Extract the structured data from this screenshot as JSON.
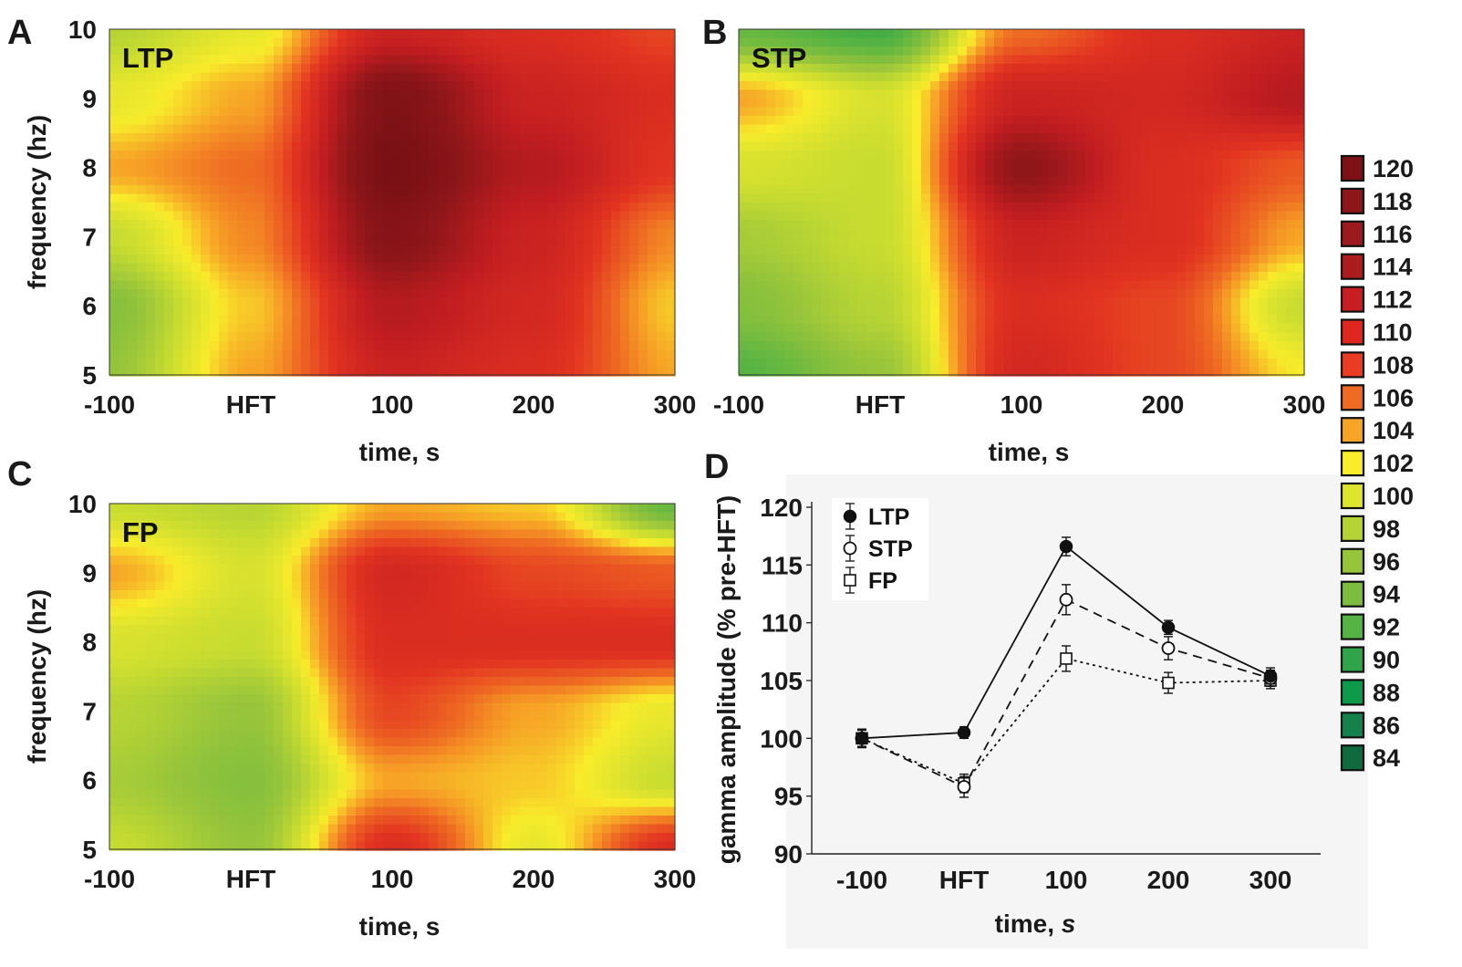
{
  "chart_data": [
    {
      "panel": "A",
      "type": "heatmap",
      "label": "LTP",
      "xlabel": "time, s",
      "ylabel": "frequency (hz)",
      "x_ticks": [
        "-100",
        "HFT",
        "100",
        "200",
        "300"
      ],
      "y_ticks": [
        "5",
        "6",
        "7",
        "8",
        "9",
        "10"
      ],
      "xlim": [
        -100,
        300
      ],
      "ylim": [
        5,
        10
      ],
      "x": [
        -100,
        0,
        100,
        200,
        300
      ],
      "y": [
        5,
        6,
        7,
        8,
        9,
        10
      ],
      "values": [
        [
          96,
          104,
          112,
          110,
          104
        ],
        [
          95,
          103,
          114,
          111,
          103
        ],
        [
          99,
          105,
          118,
          112,
          105
        ],
        [
          104,
          106,
          120,
          114,
          109
        ],
        [
          101,
          104,
          119,
          112,
          110
        ],
        [
          98,
          101,
          112,
          110,
          108
        ]
      ]
    },
    {
      "panel": "B",
      "type": "heatmap",
      "label": "STP",
      "xlabel": "time, s",
      "ylabel": "",
      "x_ticks": [
        "-100",
        "HFT",
        "100",
        "200",
        "300"
      ],
      "y_ticks": [],
      "xlim": [
        -100,
        300
      ],
      "ylim": [
        5,
        10
      ],
      "x": [
        -100,
        0,
        100,
        200,
        300
      ],
      "y": [
        5,
        6,
        7,
        8,
        9,
        10
      ],
      "values": [
        [
          92,
          96,
          111,
          108,
          102
        ],
        [
          95,
          98,
          110,
          108,
          99
        ],
        [
          97,
          99,
          112,
          110,
          104
        ],
        [
          100,
          99,
          117,
          110,
          107
        ],
        [
          104,
          100,
          112,
          111,
          114
        ],
        [
          93,
          91,
          106,
          110,
          112
        ]
      ]
    },
    {
      "panel": "C",
      "type": "heatmap",
      "label": "FP",
      "xlabel": "time, s",
      "ylabel": "frequency (hz)",
      "x_ticks": [
        "-100",
        "HFT",
        "100",
        "200",
        "300"
      ],
      "y_ticks": [
        "5",
        "6",
        "7",
        "8",
        "9",
        "10"
      ],
      "xlim": [
        -100,
        300
      ],
      "ylim": [
        5,
        10
      ],
      "x": [
        -100,
        0,
        100,
        200,
        300
      ],
      "y": [
        5,
        6,
        7,
        8,
        9,
        10
      ],
      "values": [
        [
          99,
          96,
          110,
          101,
          110
        ],
        [
          97,
          95,
          104,
          103,
          99
        ],
        [
          98,
          96,
          108,
          104,
          101
        ],
        [
          100,
          99,
          110,
          110,
          110
        ],
        [
          104,
          100,
          111,
          108,
          107
        ],
        [
          99,
          98,
          104,
          103,
          93
        ]
      ]
    },
    {
      "panel": "D",
      "type": "line",
      "xlabel": "time, ",
      "xlabel_italic": "s",
      "ylabel": "gamma amplitude (% pre-HFT)",
      "categories": [
        "-100",
        "HFT",
        "100",
        "200",
        "300"
      ],
      "y_ticks": [
        "90",
        "95",
        "100",
        "105",
        "110",
        "115",
        "120"
      ],
      "ylim": [
        90,
        120
      ],
      "series": [
        {
          "name": "LTP",
          "marker": "filled-circle",
          "line": "solid",
          "values": [
            100,
            100.5,
            116.6,
            109.6,
            105.4
          ],
          "errors": [
            0.8,
            0.5,
            0.8,
            0.6,
            0.7
          ]
        },
        {
          "name": "STP",
          "marker": "open-diamond",
          "line": "dashed",
          "values": [
            100,
            95.8,
            112,
            107.8,
            105.2
          ],
          "errors": [
            0.8,
            0.9,
            1.3,
            1.0,
            0.7
          ]
        },
        {
          "name": "FP",
          "marker": "open-square",
          "line": "dotted",
          "values": [
            100,
            96.1,
            106.9,
            104.8,
            105.0
          ],
          "errors": [
            0.7,
            0.8,
            1.1,
            0.9,
            0.7
          ]
        }
      ]
    }
  ],
  "colorbar": {
    "values": [
      "120",
      "118",
      "116",
      "114",
      "112",
      "110",
      "108",
      "106",
      "104",
      "102",
      "100",
      "98",
      "96",
      "94",
      "92",
      "90",
      "88",
      "86",
      "84"
    ],
    "colors": [
      "#7e1116",
      "#8c1618",
      "#9c1a1d",
      "#ac1c1f",
      "#c81e22",
      "#e0271f",
      "#ea3c24",
      "#ef6b23",
      "#f7a526",
      "#f8ec2b",
      "#dde52e",
      "#b6d335",
      "#96c43b",
      "#7cbc3e",
      "#55b343",
      "#2fa448",
      "#0d9a4a",
      "#14824a",
      "#0f6a3e"
    ]
  }
}
